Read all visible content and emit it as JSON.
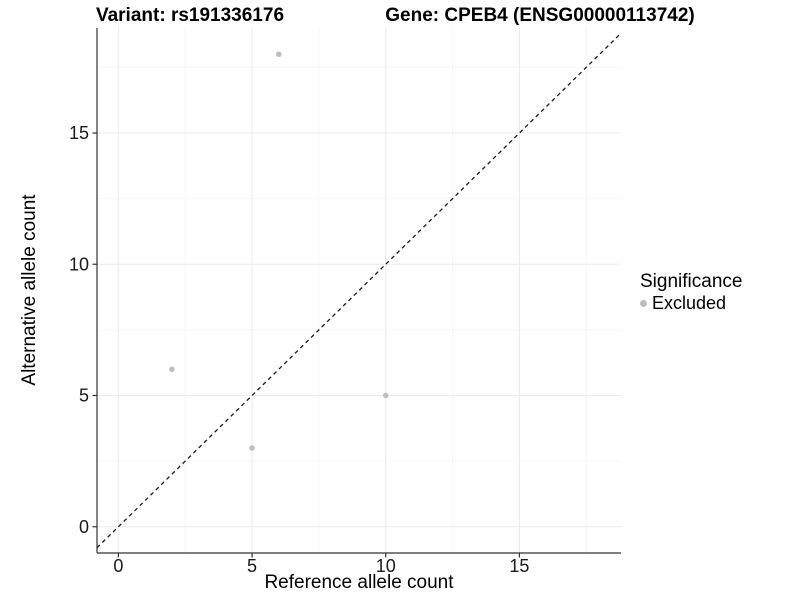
{
  "header": {
    "variant_title": "Variant: rs191336176",
    "gene_title": "Gene: CPEB4 (ENSG00000113742)"
  },
  "chart_data": {
    "type": "scatter",
    "title": "Variant: rs191336176   Gene: CPEB4 (ENSG00000113742)",
    "xlabel": "Reference allele count",
    "ylabel": "Alternative allele count",
    "xlim": [
      -0.8,
      18.8
    ],
    "ylim": [
      -1,
      19
    ],
    "x_ticks": [
      0,
      5,
      10,
      15
    ],
    "y_ticks": [
      0,
      5,
      10,
      15
    ],
    "x_minor_ticks": [
      2.5,
      7.5,
      12.5,
      17.5
    ],
    "y_minor_ticks": [
      2.5,
      7.5,
      12.5,
      17.5
    ],
    "grid": "major and minor gridlines on white panel",
    "identity_line": {
      "style": "dashed",
      "from": [
        -0.8,
        -0.8
      ],
      "to": [
        18.8,
        18.8
      ]
    },
    "series": [
      {
        "name": "Excluded",
        "color": "#bebebe",
        "points": [
          [
            2,
            6
          ],
          [
            5,
            3
          ],
          [
            6,
            18
          ],
          [
            10,
            5
          ]
        ]
      }
    ],
    "legend": {
      "title": "Significance",
      "position": "right",
      "items": [
        {
          "label": "Excluded",
          "color": "#bebebe"
        }
      ]
    },
    "colors": {
      "background": "#ffffff",
      "grid_major": "#ebebeb",
      "grid_minor": "#f6f6f6",
      "axis_line": "#333333",
      "tick_text": "#1a1a1a",
      "identity_line": "#1a1a1a"
    }
  }
}
